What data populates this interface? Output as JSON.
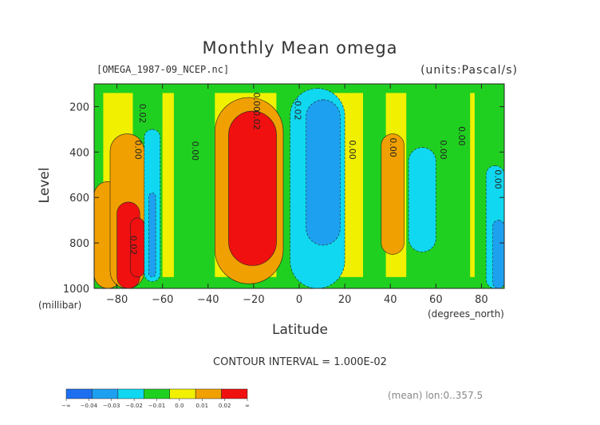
{
  "chart_data": {
    "type": "heatmap",
    "title": "Monthly Mean omega",
    "source": "[OMEGA_1987-09_NCEP.nc]",
    "units": "(units:Pascal/s)",
    "xlabel": "Latitude",
    "xunit": "(degrees_north)",
    "ylabel": "Level",
    "yunit": "(millibar)",
    "xlim": [
      -90,
      90
    ],
    "ylim": [
      1000,
      100
    ],
    "xticks": [
      "-80",
      "-60",
      "-40",
      "-20",
      "0",
      "20",
      "40",
      "60",
      "80"
    ],
    "yticks": [
      "200",
      "400",
      "600",
      "800",
      "1000"
    ],
    "contour_interval": "CONTOUR INTERVAL = 1.000E-02",
    "mean_note": "(mean) lon:0..357.5",
    "contour_labels": [
      "0.02",
      "0.00",
      "0.00",
      "0.02",
      "0.00",
      "-0.02",
      "0.00",
      "0.00",
      "0.00",
      "0.00",
      "0.02",
      "0.00"
    ],
    "colorbar": {
      "labels": [
        "-∞",
        "-0.04",
        "-0.03",
        "-0.02",
        "-0.01",
        "0.0",
        "0.01",
        "0.02",
        "∞"
      ],
      "colors": [
        "#1e6ff0",
        "#1ea0f0",
        "#10d8f0",
        "#20d020",
        "#f0f000",
        "#f0a000",
        "#f01010"
      ]
    },
    "regions": [
      {
        "value": 0.005,
        "lat": -90,
        "p": 100,
        "w": 180,
        "h": 900
      },
      {
        "value": -0.005,
        "lat": -90,
        "p": 100,
        "w": 4,
        "h": 900
      },
      {
        "value": -0.005,
        "lat": -73,
        "p": 100,
        "w": 13,
        "h": 900
      },
      {
        "value": -0.005,
        "lat": -55,
        "p": 100,
        "w": 18,
        "h": 900
      },
      {
        "value": -0.005,
        "lat": -10,
        "p": 100,
        "w": 24,
        "h": 900
      },
      {
        "value": -0.005,
        "lat": 28,
        "p": 100,
        "w": 10,
        "h": 900
      },
      {
        "value": -0.005,
        "lat": 47,
        "p": 100,
        "w": 10,
        "h": 900
      },
      {
        "value": -0.005,
        "lat": 55,
        "p": 100,
        "w": 20,
        "h": 900
      },
      {
        "value": -0.005,
        "lat": 77,
        "p": 100,
        "w": 13,
        "h": 900
      },
      {
        "value": -0.005,
        "lat": -90,
        "p": 100,
        "w": 180,
        "h": 40
      },
      {
        "value": -0.005,
        "lat": -90,
        "p": 950,
        "w": 180,
        "h": 50
      },
      {
        "value": 0.015,
        "lat": -90,
        "p": 530,
        "w": 12,
        "h": 470
      },
      {
        "value": 0.015,
        "lat": -83,
        "p": 320,
        "w": 15,
        "h": 680
      },
      {
        "value": 0.015,
        "lat": -37,
        "p": 160,
        "w": 30,
        "h": 820
      },
      {
        "value": 0.015,
        "lat": 36,
        "p": 320,
        "w": 10,
        "h": 530
      },
      {
        "value": 0.025,
        "lat": -80,
        "p": 620,
        "w": 10,
        "h": 380
      },
      {
        "value": 0.025,
        "lat": -74,
        "p": 690,
        "w": 6,
        "h": 260
      },
      {
        "value": 0.025,
        "lat": -31,
        "p": 220,
        "w": 21,
        "h": 680
      },
      {
        "value": -0.015,
        "lat": -68,
        "p": 300,
        "w": 7,
        "h": 670
      },
      {
        "value": -0.015,
        "lat": -4,
        "p": 120,
        "w": 24,
        "h": 880
      },
      {
        "value": -0.015,
        "lat": 48,
        "p": 380,
        "w": 12,
        "h": 460
      },
      {
        "value": -0.015,
        "lat": 82,
        "p": 460,
        "w": 8,
        "h": 540
      },
      {
        "value": -0.025,
        "lat": -66,
        "p": 580,
        "w": 3,
        "h": 370
      },
      {
        "value": -0.025,
        "lat": 3,
        "p": 170,
        "w": 15,
        "h": 640
      },
      {
        "value": -0.025,
        "lat": 85,
        "p": 700,
        "w": 5,
        "h": 300
      }
    ]
  }
}
